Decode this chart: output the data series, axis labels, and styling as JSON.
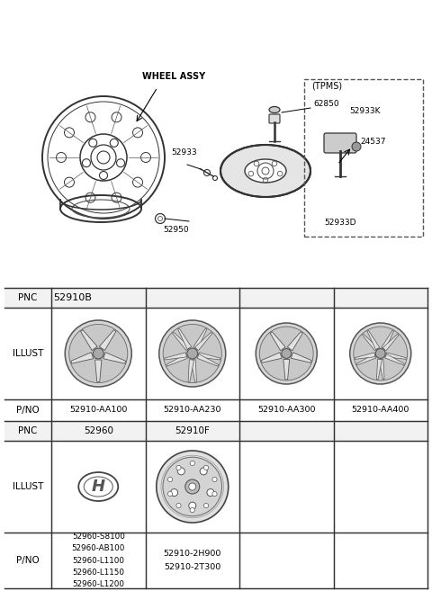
{
  "bg_color": "#ffffff",
  "table": {
    "row1_pnc": "52910B",
    "row1_parts": [
      "52910-AA100",
      "52910-AA230",
      "52910-AA300",
      "52910-AA400"
    ],
    "row2_pnc1": "52960",
    "row2_pnc2": "52910F",
    "row2_parts1": [
      "52960-S8100",
      "52960-AB100",
      "52960-L1100",
      "52960-L1150",
      "52960-L1200"
    ],
    "row2_parts2": [
      "52910-2H900",
      "52910-2T300"
    ]
  },
  "wheel_assy_label": "WHEEL ASSY",
  "tpms_label": "(TPMS)",
  "part_labels": [
    "52933",
    "52950",
    "62850",
    "52933K",
    "24537",
    "52933D"
  ]
}
